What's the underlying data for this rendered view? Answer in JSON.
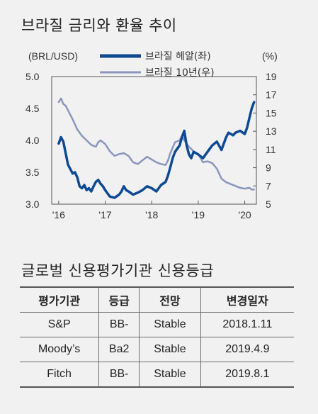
{
  "chart_title": "브라질 금리와 환율 추이",
  "ratings_title": "글로벌 신용평가기관 신용등급",
  "chart_data": {
    "type": "line",
    "left_axis_label": "(BRL/USD)",
    "right_axis_label": "(%)",
    "left_ticks": [
      "5.0",
      "4.5",
      "4.0",
      "3.5",
      "3.0"
    ],
    "right_ticks": [
      "19",
      "17",
      "15",
      "13",
      "11",
      "9",
      "7",
      "5"
    ],
    "x_ticks": [
      "'16",
      "'17",
      "'18",
      "'19",
      "'20"
    ],
    "left_ylim": [
      3.0,
      5.0
    ],
    "right_ylim": [
      5,
      19
    ],
    "grid": false,
    "legend_position": "top",
    "series": [
      {
        "name": "브라질 헤알(좌)",
        "axis": "left",
        "color": "#0e4a92",
        "x": [
          2016.0,
          2016.05,
          2016.1,
          2016.15,
          2016.2,
          2016.25,
          2016.3,
          2016.35,
          2016.4,
          2016.45,
          2016.5,
          2016.55,
          2016.6,
          2016.65,
          2016.7,
          2016.75,
          2016.8,
          2016.85,
          2016.9,
          2016.95,
          2017.0,
          2017.1,
          2017.2,
          2017.3,
          2017.35,
          2017.4,
          2017.45,
          2017.5,
          2017.6,
          2017.7,
          2017.8,
          2017.9,
          2018.0,
          2018.1,
          2018.2,
          2018.3,
          2018.35,
          2018.4,
          2018.45,
          2018.5,
          2018.6,
          2018.65,
          2018.7,
          2018.75,
          2018.8,
          2018.85,
          2018.9,
          2019.0,
          2019.1,
          2019.2,
          2019.3,
          2019.4,
          2019.5,
          2019.6,
          2019.65,
          2019.7,
          2019.75,
          2019.8,
          2019.9,
          2020.0,
          2020.05,
          2020.1,
          2020.15,
          2020.2
        ],
        "values": [
          3.95,
          4.05,
          3.98,
          3.8,
          3.62,
          3.55,
          3.48,
          3.5,
          3.42,
          3.28,
          3.25,
          3.3,
          3.22,
          3.25,
          3.2,
          3.28,
          3.35,
          3.38,
          3.32,
          3.28,
          3.22,
          3.12,
          3.1,
          3.15,
          3.2,
          3.28,
          3.22,
          3.2,
          3.15,
          3.18,
          3.22,
          3.28,
          3.25,
          3.2,
          3.3,
          3.35,
          3.45,
          3.58,
          3.72,
          3.82,
          3.92,
          4.05,
          4.15,
          3.92,
          3.78,
          3.72,
          3.82,
          3.78,
          3.72,
          3.82,
          3.92,
          3.98,
          3.85,
          4.05,
          4.12,
          4.1,
          4.08,
          4.12,
          4.15,
          4.1,
          4.2,
          4.35,
          4.5,
          4.6
        ]
      },
      {
        "name": "브라질 10년(우)",
        "axis": "right",
        "color": "#8a96be",
        "x": [
          2016.0,
          2016.05,
          2016.1,
          2016.15,
          2016.2,
          2016.3,
          2016.4,
          2016.5,
          2016.6,
          2016.7,
          2016.8,
          2016.85,
          2016.9,
          2017.0,
          2017.1,
          2017.2,
          2017.3,
          2017.4,
          2017.5,
          2017.6,
          2017.7,
          2017.8,
          2017.9,
          2018.0,
          2018.1,
          2018.2,
          2018.3,
          2018.35,
          2018.4,
          2018.5,
          2018.6,
          2018.65,
          2018.7,
          2018.8,
          2018.9,
          2019.0,
          2019.1,
          2019.2,
          2019.3,
          2019.4,
          2019.5,
          2019.6,
          2019.7,
          2019.8,
          2019.9,
          2020.0,
          2020.1,
          2020.15,
          2020.2
        ],
        "values": [
          16.2,
          16.6,
          16.0,
          15.8,
          15.3,
          14.3,
          13.2,
          12.5,
          12.0,
          11.5,
          11.3,
          11.8,
          12.0,
          11.6,
          10.8,
          10.3,
          10.5,
          10.6,
          10.3,
          9.6,
          9.4,
          9.8,
          10.2,
          9.9,
          9.6,
          9.4,
          9.3,
          9.8,
          10.6,
          11.8,
          12.0,
          12.5,
          12.0,
          11.3,
          10.8,
          10.5,
          9.6,
          9.7,
          9.5,
          8.9,
          7.8,
          7.4,
          7.2,
          7.0,
          6.8,
          6.7,
          6.8,
          6.6,
          6.6
        ]
      }
    ]
  },
  "table": {
    "headers": [
      "평가기관",
      "등급",
      "전망",
      "변경일자"
    ],
    "rows": [
      [
        "S&P",
        "BB-",
        "Stable",
        "2018.1.11"
      ],
      [
        "Moody’s",
        "Ba2",
        "Stable",
        "2019.4.9"
      ],
      [
        "Fitch",
        "BB-",
        "Stable",
        "2019.8.1"
      ]
    ]
  }
}
